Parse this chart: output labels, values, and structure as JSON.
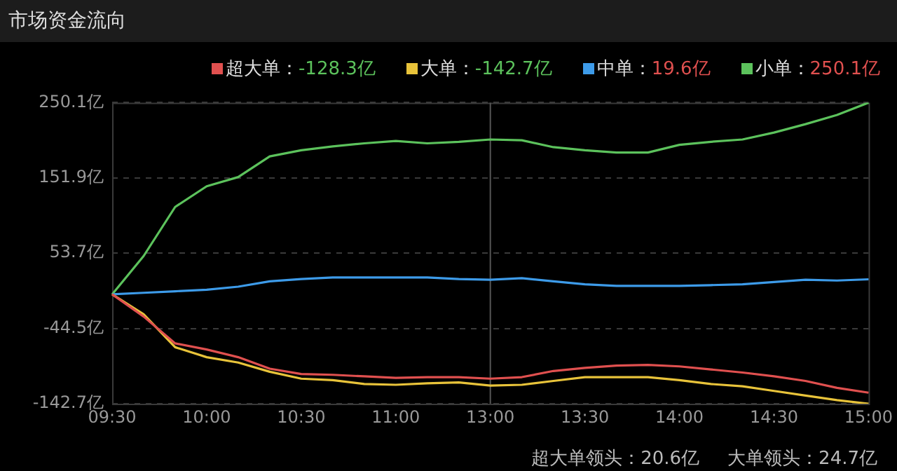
{
  "chart_data": {
    "type": "line",
    "title": "市场资金流向",
    "categories": [
      "09:30",
      null,
      null,
      "10:00",
      null,
      null,
      "10:30",
      null,
      null,
      "11:00",
      null,
      null,
      "13:00",
      null,
      null,
      "13:30",
      null,
      null,
      "14:00",
      null,
      null,
      "14:30",
      null,
      null,
      "15:00"
    ],
    "ylim": [
      -142.7,
      250.1
    ],
    "yticks": [
      {
        "value": -142.7,
        "label": "-142.7亿"
      },
      {
        "value": -44.5,
        "label": "-44.5亿"
      },
      {
        "value": 53.7,
        "label": "53.7亿"
      },
      {
        "value": 151.9,
        "label": "151.9亿"
      },
      {
        "value": 250.1,
        "label": "250.1亿"
      }
    ],
    "grid": "y",
    "legend": "top right",
    "marker": "none",
    "line_style": "solid",
    "ref_lines": [
      {
        "axis": "x",
        "value": "13:00",
        "color": "#555555"
      }
    ],
    "series": [
      {
        "name": "超大单：",
        "color": "#e0504f",
        "values": [
          0,
          -29,
          -64,
          -72,
          -82,
          -97,
          -104,
          -105,
          -107,
          -109,
          -108,
          -108,
          -110,
          -108,
          -100,
          -96,
          -93,
          -92,
          -94,
          -98,
          -102,
          -107,
          -113,
          -122,
          -128.3
        ]
      },
      {
        "name": "大单：",
        "color": "#e8c33a",
        "values": [
          0,
          -26,
          -69,
          -82,
          -89,
          -101,
          -110,
          -112,
          -117,
          -118,
          -116,
          -115,
          -119,
          -118,
          -113,
          -108,
          -108,
          -108,
          -112,
          -117,
          -120,
          -126,
          -132,
          -138,
          -142.7
        ]
      },
      {
        "name": "中单：",
        "color": "#3d9be9",
        "values": [
          0,
          2,
          4,
          6,
          10,
          17,
          20,
          22,
          22,
          22,
          22,
          20,
          19,
          21,
          17,
          13,
          11,
          11,
          11,
          12,
          13,
          16,
          19,
          18,
          19.6
        ]
      },
      {
        "name": "小单：",
        "color": "#5cc25c",
        "values": [
          0,
          50,
          114,
          141,
          153,
          180,
          188,
          193,
          197,
          200,
          197,
          199,
          202,
          201,
          192,
          188,
          185,
          185,
          195,
          199,
          202,
          211,
          222,
          234,
          250.1
        ]
      }
    ],
    "annotations": [
      "-128.3亿",
      "-142.7亿",
      "19.6亿",
      "250.1亿",
      "超大单领头：20.6亿",
      "大单领头：24.7亿"
    ]
  }
}
